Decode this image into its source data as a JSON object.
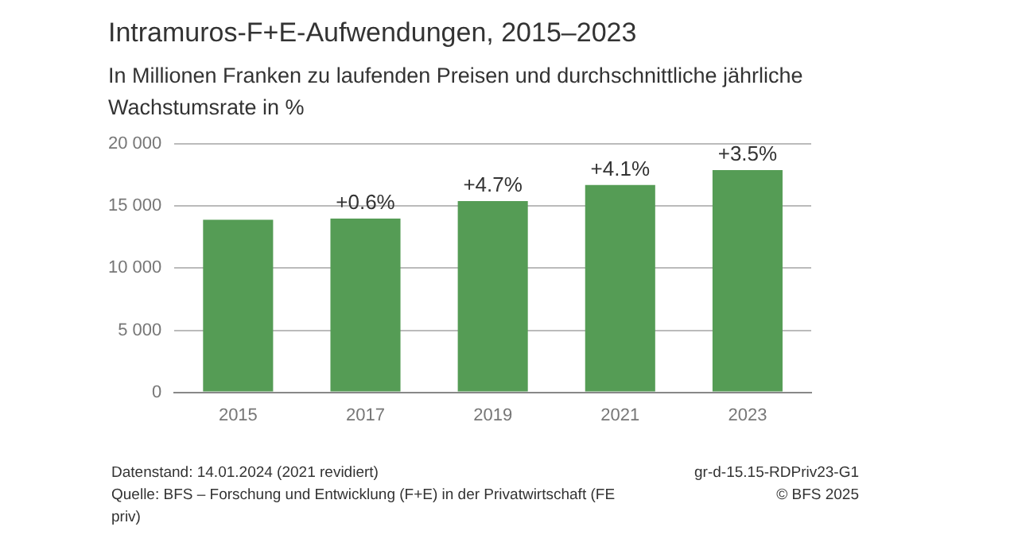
{
  "chart_data": {
    "type": "bar",
    "title": "Intramuros-F+E-Aufwendungen, 2015–2023",
    "subtitle": "In Millionen Franken zu laufenden Preisen und durchschnittliche jährliche Wachstumsrate in %",
    "categories": [
      "2015",
      "2017",
      "2019",
      "2021",
      "2023"
    ],
    "values": [
      13900,
      14000,
      15400,
      16700,
      17900
    ],
    "color": "#559c55",
    "ylim": [
      0,
      20000
    ],
    "yticks": [
      {
        "value": 0,
        "label": "0"
      },
      {
        "value": 5000,
        "label": "5 000"
      },
      {
        "value": 10000,
        "label": "10 000"
      },
      {
        "value": 15000,
        "label": "15 000"
      },
      {
        "value": 20000,
        "label": "20 000"
      }
    ],
    "grid": "y",
    "legend": false,
    "annotations": [
      {
        "text": "+0.6%",
        "x": "2017",
        "y": 14000
      },
      {
        "text": "+4.7%",
        "x": "2019",
        "y": 15400
      },
      {
        "text": "+4.1%",
        "x": "2021",
        "y": 16700
      },
      {
        "text": "+3.5%",
        "x": "2023",
        "y": 17900
      },
      "Datenstand: 14.01.2024 (2021 revidiert)",
      "gr-d-15.15-RDPriv23-G1",
      "Quelle: BFS – Forschung und Entwicklung (F+E) in der Privatwirtschaft (FE priv)",
      "© BFS 2025"
    ]
  }
}
